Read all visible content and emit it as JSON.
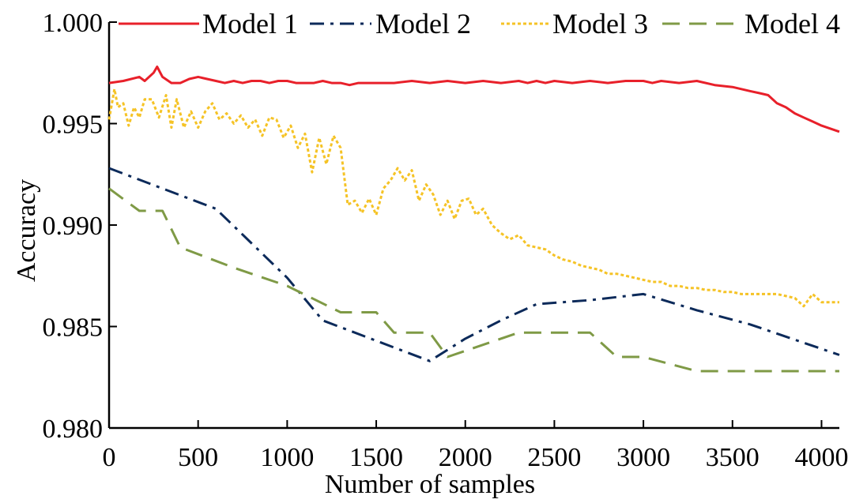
{
  "chart_data": {
    "type": "line",
    "title": "",
    "xlabel": "Number of samples",
    "ylabel": "Accuracy",
    "xlim": [
      0,
      4100
    ],
    "ylim": [
      0.98,
      1.0
    ],
    "x_ticks": [
      0,
      500,
      1000,
      1500,
      2000,
      2500,
      3000,
      3500,
      4000
    ],
    "x_tick_labels": [
      "0",
      "500",
      "1000",
      "1500",
      "2000",
      "2500",
      "3000",
      "3500",
      "4000"
    ],
    "y_ticks": [
      0.98,
      0.985,
      0.99,
      0.995,
      1.0
    ],
    "y_tick_labels": [
      "0.980",
      "0.985",
      "0.990",
      "0.995",
      "1.000"
    ],
    "grid": false,
    "legend_position": "top",
    "series": [
      {
        "name": "Model 1",
        "color": "#e8202a",
        "style": "solid",
        "x": [
          0,
          80,
          170,
          200,
          250,
          270,
          300,
          350,
          400,
          450,
          500,
          550,
          600,
          650,
          700,
          750,
          800,
          850,
          900,
          950,
          1000,
          1050,
          1100,
          1150,
          1200,
          1250,
          1300,
          1350,
          1400,
          1500,
          1600,
          1700,
          1800,
          1900,
          2000,
          2100,
          2200,
          2300,
          2350,
          2400,
          2450,
          2500,
          2600,
          2700,
          2800,
          2900,
          3000,
          3050,
          3100,
          3200,
          3300,
          3400,
          3500,
          3600,
          3650,
          3700,
          3750,
          3800,
          3850,
          3900,
          3950,
          4000,
          4100
        ],
        "y": [
          0.997,
          0.9971,
          0.9973,
          0.9971,
          0.9975,
          0.9978,
          0.9973,
          0.997,
          0.997,
          0.9972,
          0.9973,
          0.9972,
          0.9971,
          0.997,
          0.9971,
          0.997,
          0.9971,
          0.9971,
          0.997,
          0.9971,
          0.9971,
          0.997,
          0.997,
          0.997,
          0.9971,
          0.997,
          0.997,
          0.9969,
          0.997,
          0.997,
          0.997,
          0.9971,
          0.997,
          0.9971,
          0.997,
          0.9971,
          0.997,
          0.9971,
          0.997,
          0.9971,
          0.997,
          0.9971,
          0.997,
          0.9971,
          0.997,
          0.9971,
          0.9971,
          0.997,
          0.9971,
          0.997,
          0.9971,
          0.9969,
          0.9968,
          0.9966,
          0.9965,
          0.9964,
          0.996,
          0.9958,
          0.9955,
          0.9953,
          0.9951,
          0.9949,
          0.9946
        ]
      },
      {
        "name": "Model 2",
        "color": "#0c2a5a",
        "style": "dashdot",
        "x": [
          0,
          300,
          600,
          1000,
          1200,
          1500,
          1800,
          2000,
          2200,
          2400,
          2700,
          3000,
          3300,
          3600,
          4100
        ],
        "y": [
          0.9928,
          0.9918,
          0.9908,
          0.9874,
          0.9853,
          0.9843,
          0.9833,
          0.9844,
          0.9853,
          0.9861,
          0.9863,
          0.9866,
          0.9858,
          0.9851,
          0.9836
        ]
      },
      {
        "name": "Model 3",
        "color": "#f5c326",
        "style": "dotted",
        "x": [
          0,
          30,
          50,
          80,
          110,
          140,
          170,
          200,
          240,
          280,
          320,
          350,
          380,
          420,
          460,
          500,
          540,
          580,
          620,
          660,
          700,
          740,
          780,
          820,
          860,
          900,
          940,
          980,
          1020,
          1060,
          1100,
          1140,
          1180,
          1220,
          1260,
          1300,
          1340,
          1380,
          1420,
          1460,
          1500,
          1540,
          1580,
          1620,
          1660,
          1700,
          1740,
          1780,
          1820,
          1860,
          1900,
          1940,
          1980,
          2020,
          2060,
          2100,
          2150,
          2200,
          2250,
          2300,
          2350,
          2400,
          2450,
          2500,
          2550,
          2600,
          2650,
          2700,
          2750,
          2800,
          2850,
          2900,
          2950,
          3000,
          3050,
          3100,
          3150,
          3200,
          3250,
          3300,
          3350,
          3400,
          3450,
          3500,
          3550,
          3600,
          3650,
          3700,
          3750,
          3800,
          3850,
          3900,
          3950,
          4000,
          4050,
          4100
        ],
        "y": [
          0.9952,
          0.9967,
          0.9958,
          0.996,
          0.9949,
          0.9958,
          0.9953,
          0.9962,
          0.9962,
          0.9953,
          0.9964,
          0.9948,
          0.9962,
          0.9948,
          0.9956,
          0.9948,
          0.9956,
          0.996,
          0.9952,
          0.9955,
          0.995,
          0.9954,
          0.9948,
          0.9952,
          0.9944,
          0.9953,
          0.9952,
          0.9943,
          0.9949,
          0.9938,
          0.9945,
          0.9926,
          0.9943,
          0.993,
          0.9944,
          0.9938,
          0.991,
          0.9912,
          0.9906,
          0.9913,
          0.9905,
          0.9918,
          0.9922,
          0.9928,
          0.9922,
          0.9927,
          0.9912,
          0.992,
          0.9915,
          0.9905,
          0.9912,
          0.9903,
          0.9912,
          0.9913,
          0.9905,
          0.9908,
          0.99,
          0.9896,
          0.9893,
          0.9895,
          0.989,
          0.9889,
          0.9888,
          0.9885,
          0.9883,
          0.9882,
          0.988,
          0.9879,
          0.9878,
          0.9876,
          0.9876,
          0.9875,
          0.9874,
          0.9873,
          0.9872,
          0.9872,
          0.987,
          0.987,
          0.9869,
          0.9869,
          0.9868,
          0.9868,
          0.9867,
          0.9867,
          0.9866,
          0.9866,
          0.9866,
          0.9866,
          0.9866,
          0.9865,
          0.9864,
          0.986,
          0.9866,
          0.9862,
          0.9862,
          0.9862
        ]
      },
      {
        "name": "Model 4",
        "color": "#7f9a46",
        "style": "dashed",
        "x": [
          0,
          170,
          300,
          400,
          700,
          1000,
          1300,
          1500,
          1600,
          1800,
          1900,
          2000,
          2300,
          2500,
          2700,
          2850,
          3000,
          3300,
          3500,
          3800,
          4100
        ],
        "y": [
          0.9918,
          0.9907,
          0.9907,
          0.9889,
          0.9879,
          0.987,
          0.9857,
          0.9857,
          0.9847,
          0.9847,
          0.9835,
          0.9838,
          0.9847,
          0.9847,
          0.9847,
          0.9835,
          0.9835,
          0.9828,
          0.9828,
          0.9828,
          0.9828
        ]
      }
    ]
  }
}
